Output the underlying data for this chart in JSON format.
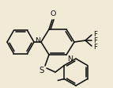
{
  "bg_color": "#f0ead6",
  "line_color": "#111111",
  "line_width": 1.15,
  "font_size": 6.8,
  "fig_width": 1.43,
  "fig_height": 1.11,
  "dpi": 100,
  "xlim": [
    0,
    143
  ],
  "ylim": [
    0,
    111
  ]
}
